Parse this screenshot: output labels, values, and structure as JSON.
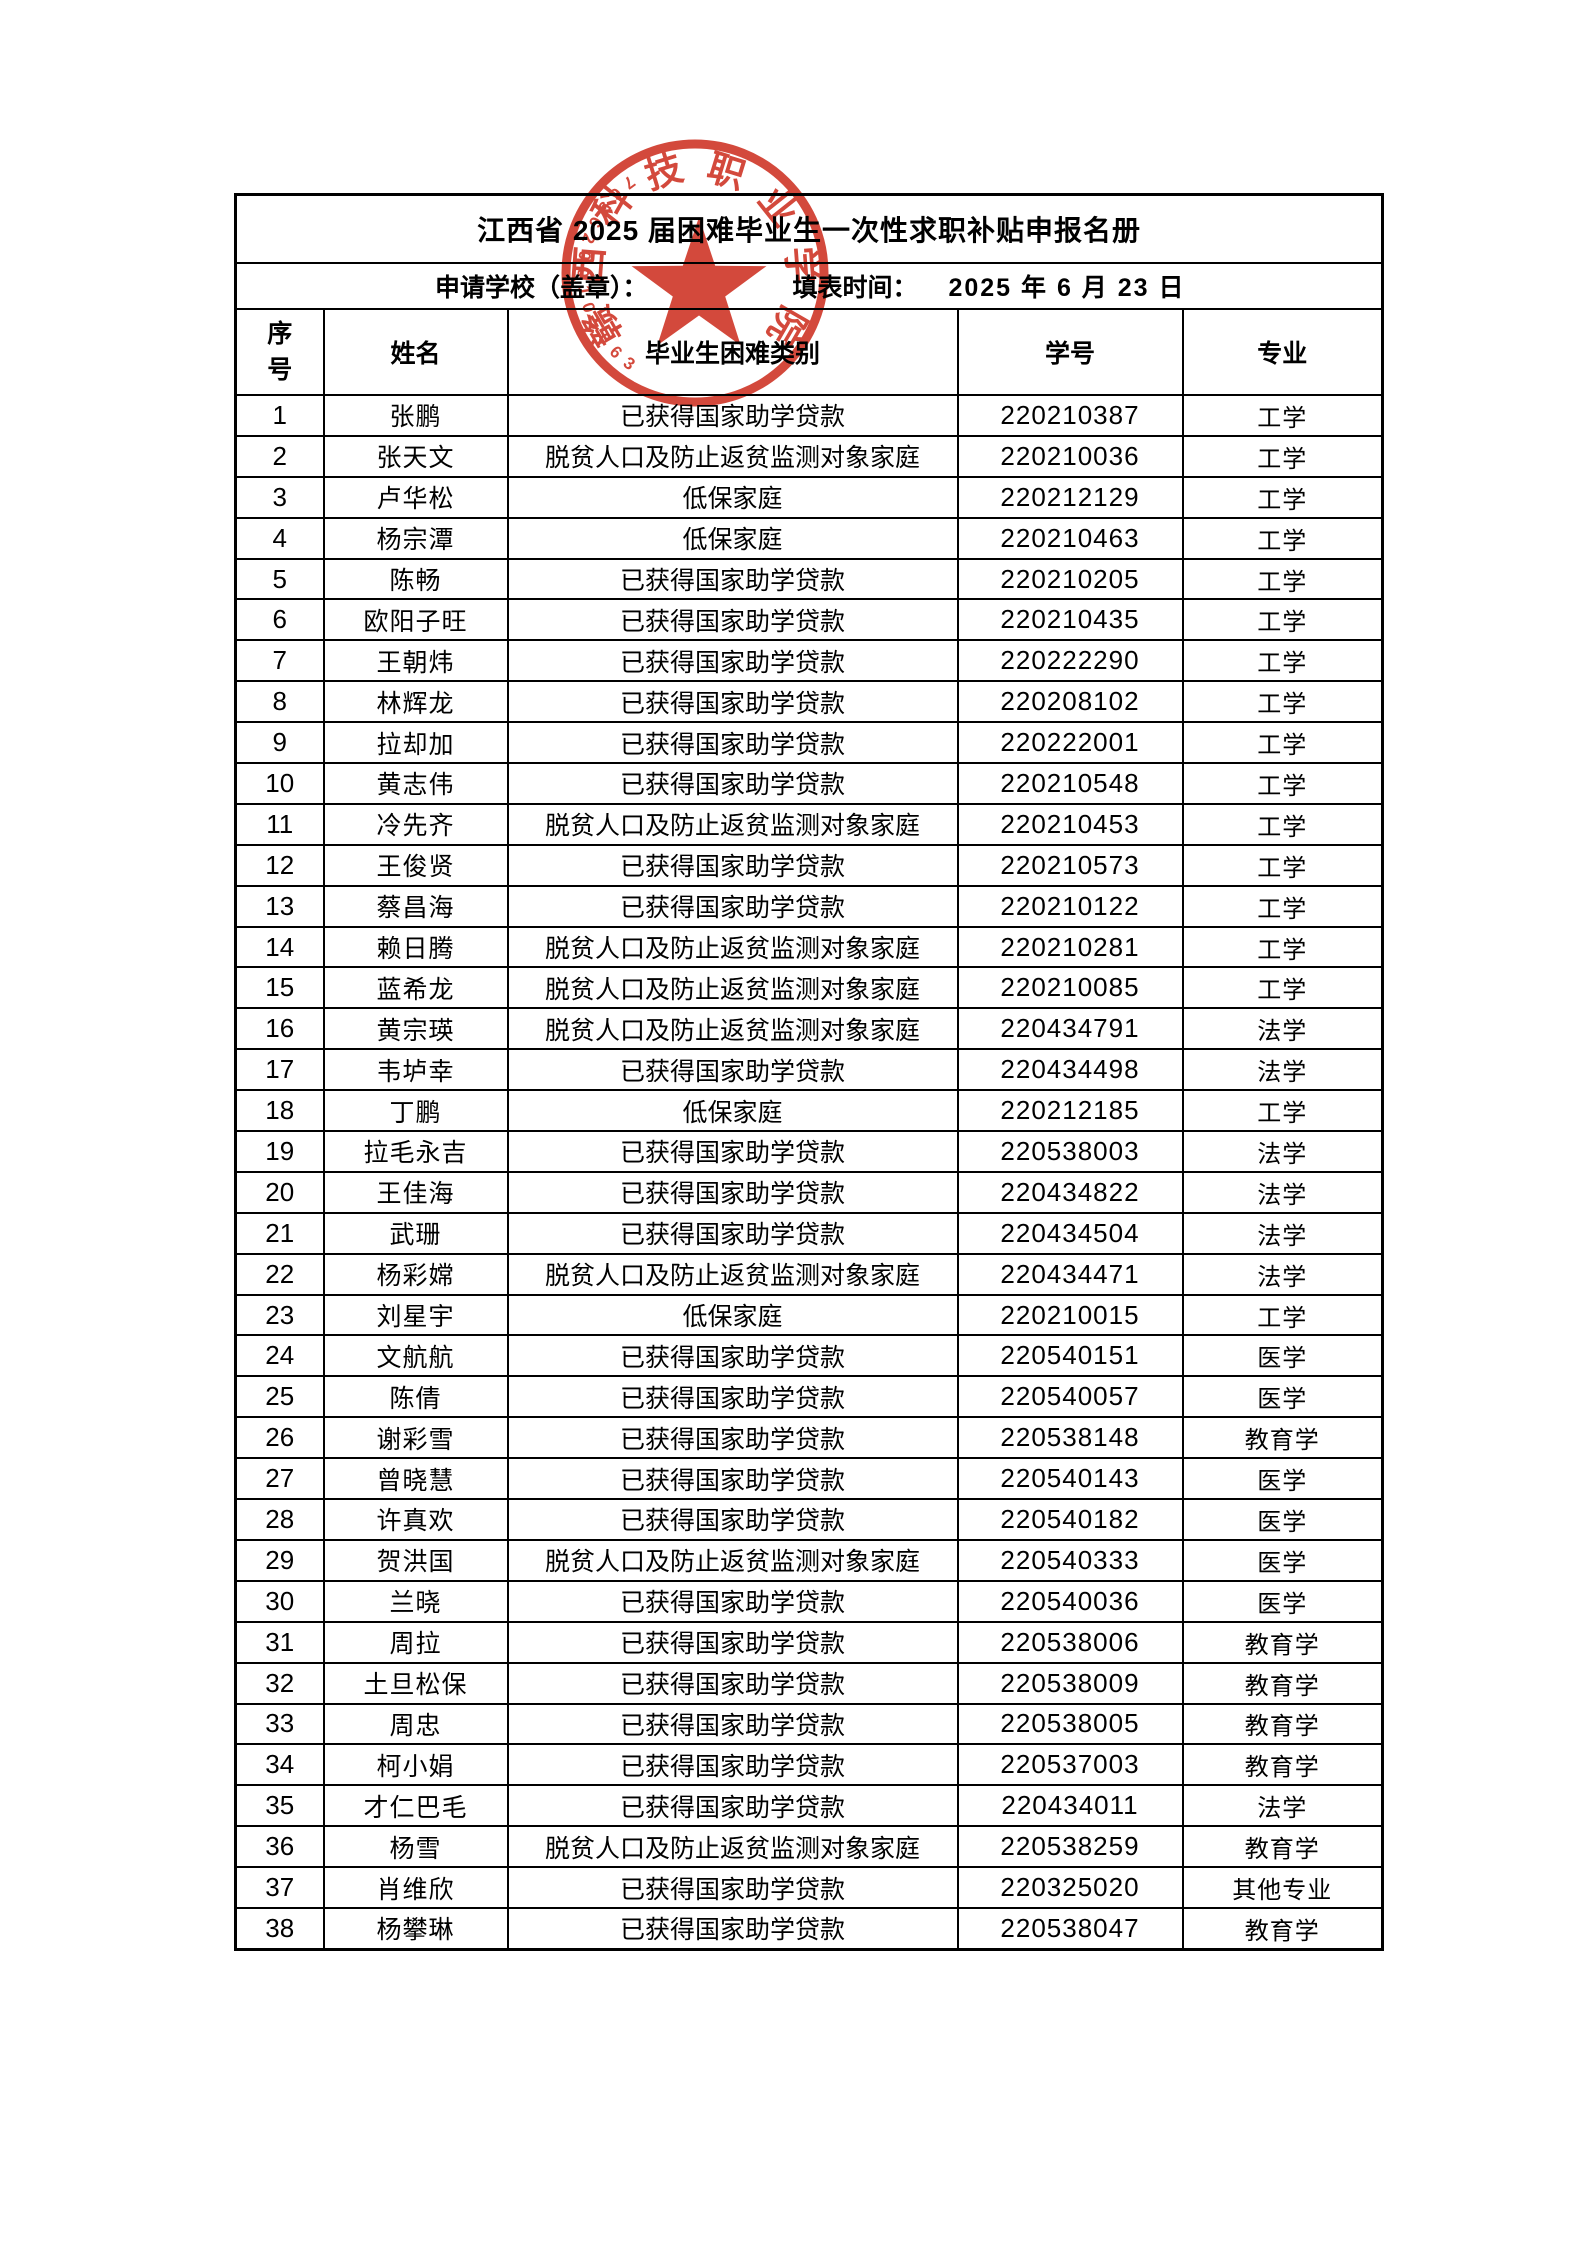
{
  "page": {
    "background": "#ffffff"
  },
  "title": "江西省 2025 届困难毕业生一次性求职补贴申报名册",
  "meta": {
    "school_label": "申请学校（盖章）：",
    "date_label": "填表时间：",
    "date_value": "2025 年 6 月 23 日"
  },
  "columns": [
    "序\n号",
    "姓名",
    "毕业生困难类别",
    "学号",
    "专业"
  ],
  "category_values": [
    "已获得国家助学贷款",
    "脱贫人口及防止返贫监测对象家庭",
    "低保家庭"
  ],
  "rows": [
    [
      "1",
      "张鹏",
      "已获得国家助学贷款",
      "220210387",
      "工学"
    ],
    [
      "2",
      "张天文",
      "脱贫人口及防止返贫监测对象家庭",
      "220210036",
      "工学"
    ],
    [
      "3",
      "卢华松",
      "低保家庭",
      "220212129",
      "工学"
    ],
    [
      "4",
      "杨宗潭",
      "低保家庭",
      "220210463",
      "工学"
    ],
    [
      "5",
      "陈畅",
      "已获得国家助学贷款",
      "220210205",
      "工学"
    ],
    [
      "6",
      "欧阳子旺",
      "已获得国家助学贷款",
      "220210435",
      "工学"
    ],
    [
      "7",
      "王朝炜",
      "已获得国家助学贷款",
      "220222290",
      "工学"
    ],
    [
      "8",
      "林辉龙",
      "已获得国家助学贷款",
      "220208102",
      "工学"
    ],
    [
      "9",
      "拉却加",
      "已获得国家助学贷款",
      "220222001",
      "工学"
    ],
    [
      "10",
      "黄志伟",
      "已获得国家助学贷款",
      "220210548",
      "工学"
    ],
    [
      "11",
      "冷先齐",
      "脱贫人口及防止返贫监测对象家庭",
      "220210453",
      "工学"
    ],
    [
      "12",
      "王俊贤",
      "已获得国家助学贷款",
      "220210573",
      "工学"
    ],
    [
      "13",
      "蔡昌海",
      "已获得国家助学贷款",
      "220210122",
      "工学"
    ],
    [
      "14",
      "赖日腾",
      "脱贫人口及防止返贫监测对象家庭",
      "220210281",
      "工学"
    ],
    [
      "15",
      "蓝希龙",
      "脱贫人口及防止返贫监测对象家庭",
      "220210085",
      "工学"
    ],
    [
      "16",
      "黄宗瑛",
      "脱贫人口及防止返贫监测对象家庭",
      "220434791",
      "法学"
    ],
    [
      "17",
      "韦垆幸",
      "已获得国家助学贷款",
      "220434498",
      "法学"
    ],
    [
      "18",
      "丁鹏",
      "低保家庭",
      "220212185",
      "工学"
    ],
    [
      "19",
      "拉毛永吉",
      "已获得国家助学贷款",
      "220538003",
      "法学"
    ],
    [
      "20",
      "王佳海",
      "已获得国家助学贷款",
      "220434822",
      "法学"
    ],
    [
      "21",
      "武珊",
      "已获得国家助学贷款",
      "220434504",
      "法学"
    ],
    [
      "22",
      "杨彩嫦",
      "脱贫人口及防止返贫监测对象家庭",
      "220434471",
      "法学"
    ],
    [
      "23",
      "刘星宇",
      "低保家庭",
      "220210015",
      "工学"
    ],
    [
      "24",
      "文航航",
      "已获得国家助学贷款",
      "220540151",
      "医学"
    ],
    [
      "25",
      "陈倩",
      "已获得国家助学贷款",
      "220540057",
      "医学"
    ],
    [
      "26",
      "谢彩雪",
      "已获得国家助学贷款",
      "220538148",
      "教育学"
    ],
    [
      "27",
      "曾晓慧",
      "已获得国家助学贷款",
      "220540143",
      "医学"
    ],
    [
      "28",
      "许真欢",
      "已获得国家助学贷款",
      "220540182",
      "医学"
    ],
    [
      "29",
      "贺洪国",
      "脱贫人口及防止返贫监测对象家庭",
      "220540333",
      "医学"
    ],
    [
      "30",
      "兰晓",
      "已获得国家助学贷款",
      "220540036",
      "医学"
    ],
    [
      "31",
      "周拉",
      "已获得国家助学贷款",
      "220538006",
      "教育学"
    ],
    [
      "32",
      "土旦松保",
      "已获得国家助学贷款",
      "220538009",
      "教育学"
    ],
    [
      "33",
      "周忠",
      "已获得国家助学贷款",
      "220538005",
      "教育学"
    ],
    [
      "34",
      "柯小娟",
      "已获得国家助学贷款",
      "220537003",
      "教育学"
    ],
    [
      "35",
      "才仁巴毛",
      "已获得国家助学贷款",
      "220434011",
      "法学"
    ],
    [
      "36",
      "杨雪",
      "脱贫人口及防止返贫监测对象家庭",
      "220538259",
      "教育学"
    ],
    [
      "37",
      "肖维欣",
      "已获得国家助学贷款",
      "220325020",
      "其他专业"
    ],
    [
      "38",
      "杨攀琳",
      "已获得国家助学贷款",
      "220538047",
      "教育学"
    ]
  ],
  "stamp": {
    "ring_text": "赣西科技职业学院",
    "serial_number": "3605010026567",
    "color": "#cf3526"
  }
}
